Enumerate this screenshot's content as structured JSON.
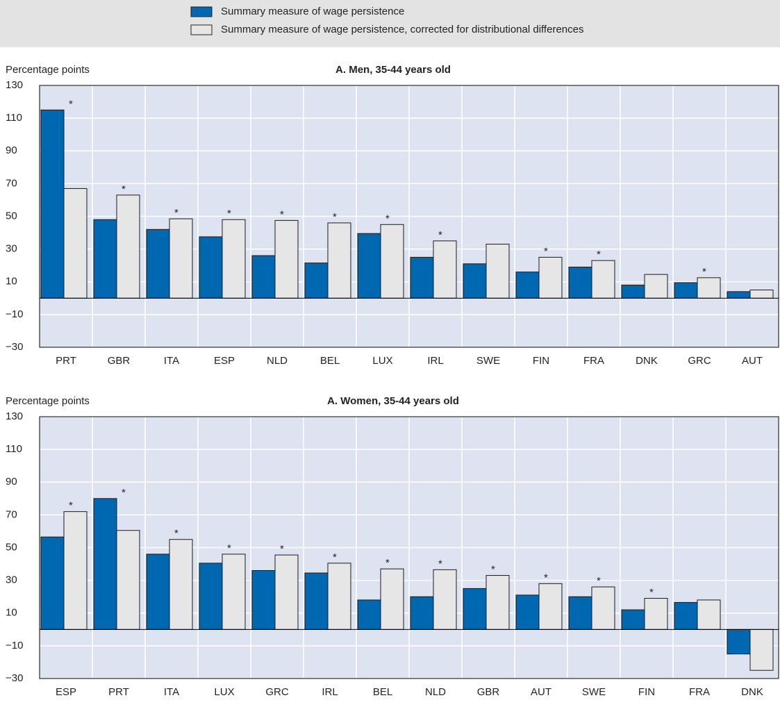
{
  "chart_data": [
    {
      "type": "bar",
      "title": "A. Men, 35-44 years old",
      "ylabel": "Percentage points",
      "categories": [
        "PRT",
        "GBR",
        "ITA",
        "ESP",
        "NLD",
        "BEL",
        "LUX",
        "IRL",
        "SWE",
        "FIN",
        "FRA",
        "DNK",
        "GRC",
        "AUT"
      ],
      "series": [
        {
          "name": "Summary measure of wage persistence",
          "color": "#0067b1",
          "values": [
            115,
            48,
            42,
            37.5,
            26,
            21.5,
            39.5,
            25,
            21,
            16,
            19,
            8,
            9.5,
            4
          ]
        },
        {
          "name": "Summary measure of wage persistence, corrected for distributional differences",
          "color": "#e6e6e6",
          "values": [
            67,
            63,
            48.5,
            48,
            47.5,
            46,
            45,
            35,
            33,
            25,
            23,
            14.5,
            12.5,
            5
          ]
        }
      ],
      "markers": [
        "*",
        "*",
        "*",
        "*",
        "*",
        "*",
        "*",
        "*",
        null,
        "*",
        "*",
        null,
        "*",
        null
      ],
      "ylim": [
        -30,
        130
      ],
      "yticks": [
        {
          "value": -30,
          "label": "−30"
        },
        {
          "value": -10,
          "label": "−10"
        },
        10,
        30,
        50,
        70,
        90,
        110,
        130
      ],
      "grid": true
    },
    {
      "type": "bar",
      "title": "A. Women, 35-44 years old",
      "ylabel": "Percentage points",
      "categories": [
        "ESP",
        "PRT",
        "ITA",
        "LUX",
        "GRC",
        "IRL",
        "BEL",
        "NLD",
        "GBR",
        "AUT",
        "SWE",
        "FIN",
        "FRA",
        "DNK"
      ],
      "series": [
        {
          "color": "#0067b1",
          "values": [
            56.5,
            80,
            46,
            40.5,
            36,
            34.5,
            18,
            20,
            25,
            21,
            20,
            12,
            16.5,
            -15
          ]
        },
        {
          "color": "#e6e6e6",
          "values": [
            72,
            60.5,
            55,
            46,
            45.5,
            40.5,
            37,
            36.5,
            33,
            28,
            26,
            19,
            18,
            -25
          ]
        }
      ],
      "markers": [
        "*",
        "*",
        "*",
        "*",
        "*",
        "*",
        "*",
        "*",
        "*",
        "*",
        "*",
        "*",
        null,
        null
      ],
      "ylim": [
        -30,
        130
      ],
      "yticks": [
        {
          "value": -30,
          "label": "−30"
        },
        {
          "value": -10,
          "label": "−10"
        },
        10,
        30,
        50,
        70,
        90,
        110,
        130
      ],
      "grid": true
    }
  ]
}
